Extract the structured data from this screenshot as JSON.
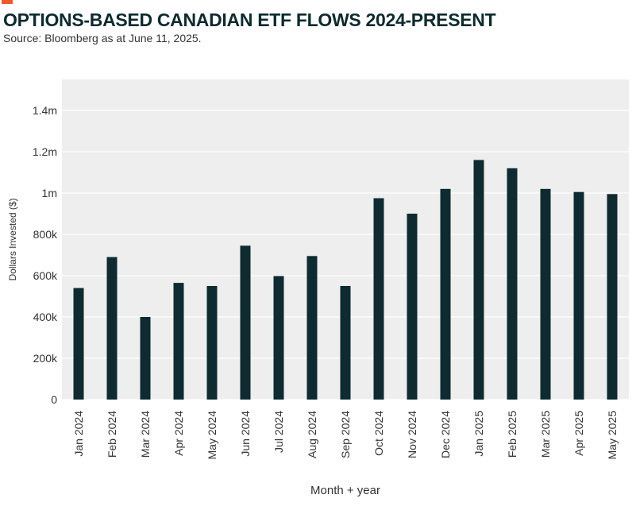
{
  "title": "OPTIONS-BASED CANADIAN ETF FLOWS 2024-PRESENT",
  "subtitle": "Source: Bloomberg as at June 11, 2025.",
  "colors": {
    "accent": "#f05a28",
    "title": "#0d2b30",
    "bar": "#0d2b30",
    "plot_background": "#eeeeee",
    "grid": "#ffffff"
  },
  "chart_data": {
    "type": "bar",
    "categories": [
      "Jan 2024",
      "Feb 2024",
      "Mar 2024",
      "Apr 2024",
      "May 2024",
      "Jun 2024",
      "Jul 2024",
      "Aug 2024",
      "Sep 2024",
      "Oct 2024",
      "Nov 2024",
      "Dec 2024",
      "Jan 2025",
      "Feb 2025",
      "Mar 2025",
      "Apr 2025",
      "May 2025"
    ],
    "values": [
      540000,
      690000,
      400000,
      565000,
      550000,
      745000,
      598000,
      695000,
      550000,
      975000,
      900000,
      1020000,
      1160000,
      1120000,
      1020000,
      1005000,
      995000
    ],
    "xlabel": "Month + year",
    "ylabel": "Dollars Invested ($)",
    "ylim": [
      0,
      1550000
    ],
    "yticks": [
      0,
      200000,
      400000,
      600000,
      800000,
      1000000,
      1200000,
      1400000
    ],
    "ytick_labels": [
      "0",
      "200k",
      "400k",
      "600k",
      "800k",
      "1m",
      "1.2m",
      "1.4m"
    ],
    "grid": true,
    "legend": "none"
  }
}
